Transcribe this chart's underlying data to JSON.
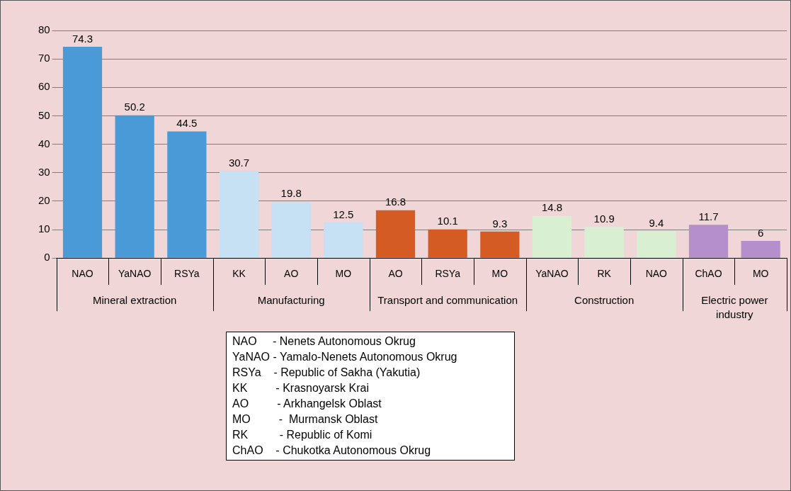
{
  "chart_data": {
    "type": "bar",
    "categories": [
      "NAO",
      "YaNAO",
      "RSYa",
      "KK",
      "AO",
      "MO",
      "AO",
      "RSYa",
      "MO",
      "YaNAO",
      "RK",
      "NAO",
      "ChAO",
      "MO"
    ],
    "values": [
      74.3,
      50.2,
      44.5,
      30.7,
      19.8,
      12.5,
      16.8,
      10.1,
      9.3,
      14.8,
      10.9,
      9.4,
      11.7,
      6
    ],
    "colors": [
      "#4a9ad8",
      "#4a9ad8",
      "#4a9ad8",
      "#c6e0f4",
      "#c6e0f4",
      "#c6e0f4",
      "#d45c24",
      "#d45c24",
      "#d45c24",
      "#d9efd2",
      "#d9efd2",
      "#d9efd2",
      "#b58fcb",
      "#b58fcb"
    ],
    "ylim": [
      0,
      80
    ],
    "yticks": [
      0,
      10,
      20,
      30,
      40,
      50,
      60,
      70,
      80
    ],
    "grid": "y",
    "data_labels": true,
    "legend": false,
    "annotations": [
      "Mineral extraction",
      "Manufacturing",
      "Transport and communication",
      "Construction",
      "Electric power industry",
      "NAO     - Nenets Autonomous Okrug",
      "YaNAO - Yamalo-Nenets Autonomous Okrug",
      "RSYa    - Republic of Sakha (Yakutia)",
      "KK         - Krasnoyarsk Krai",
      "AO         - Arkhangelsk Oblast",
      "MO         -  Murmansk Oblast",
      "RK          - Republic of Komi",
      "ChAO    - Chukotka Autonomous Okrug"
    ]
  }
}
